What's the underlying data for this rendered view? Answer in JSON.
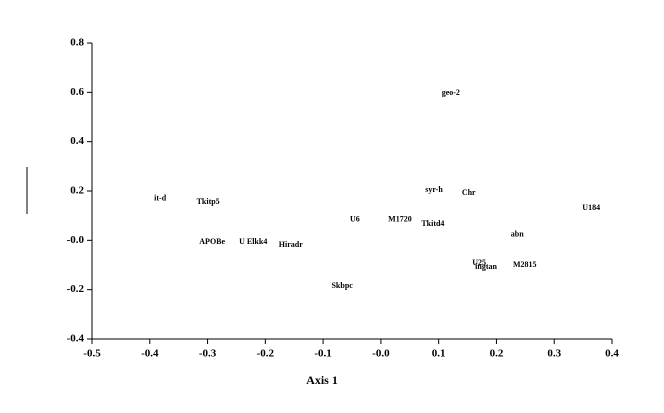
{
  "chart_data": {
    "type": "scatter",
    "x_label": "Axis 1",
    "labels": [
      "it-d",
      "Tkitp5",
      "APOBe",
      "U Elkk4",
      "Hiradr",
      "U6",
      "M1720",
      "Tkitd4",
      "syr-h",
      "Chr",
      "geo-2",
      "U184",
      "abn",
      "U25",
      "ingtan",
      "M2815",
      "Skbpc"
    ],
    "x": [
      -0.382,
      -0.299,
      -0.292,
      -0.221,
      -0.156,
      -0.045,
      0.033,
      0.09,
      0.092,
      0.152,
      0.121,
      0.364,
      0.236,
      0.17,
      0.182,
      0.249,
      -0.067
    ],
    "values": [
      0.168,
      0.155,
      -0.007,
      -0.007,
      -0.019,
      0.083,
      0.083,
      0.066,
      0.204,
      0.192,
      0.597,
      0.131,
      0.022,
      -0.092,
      -0.108,
      -0.1,
      -0.185
    ],
    "xlim": [
      -0.5,
      0.4
    ],
    "ylim": [
      -0.4,
      0.8
    ],
    "xticks": [
      -0.5,
      -0.4,
      -0.3,
      -0.2,
      -0.1,
      {
        "value": 0,
        "label": "-0.0"
      },
      0.1,
      0.2,
      0.3,
      0.4
    ],
    "yticks": [
      0.8,
      0.6,
      0.4,
      0.2,
      {
        "value": 0,
        "label": "-0.0"
      },
      -0.2,
      -0.4
    ]
  }
}
